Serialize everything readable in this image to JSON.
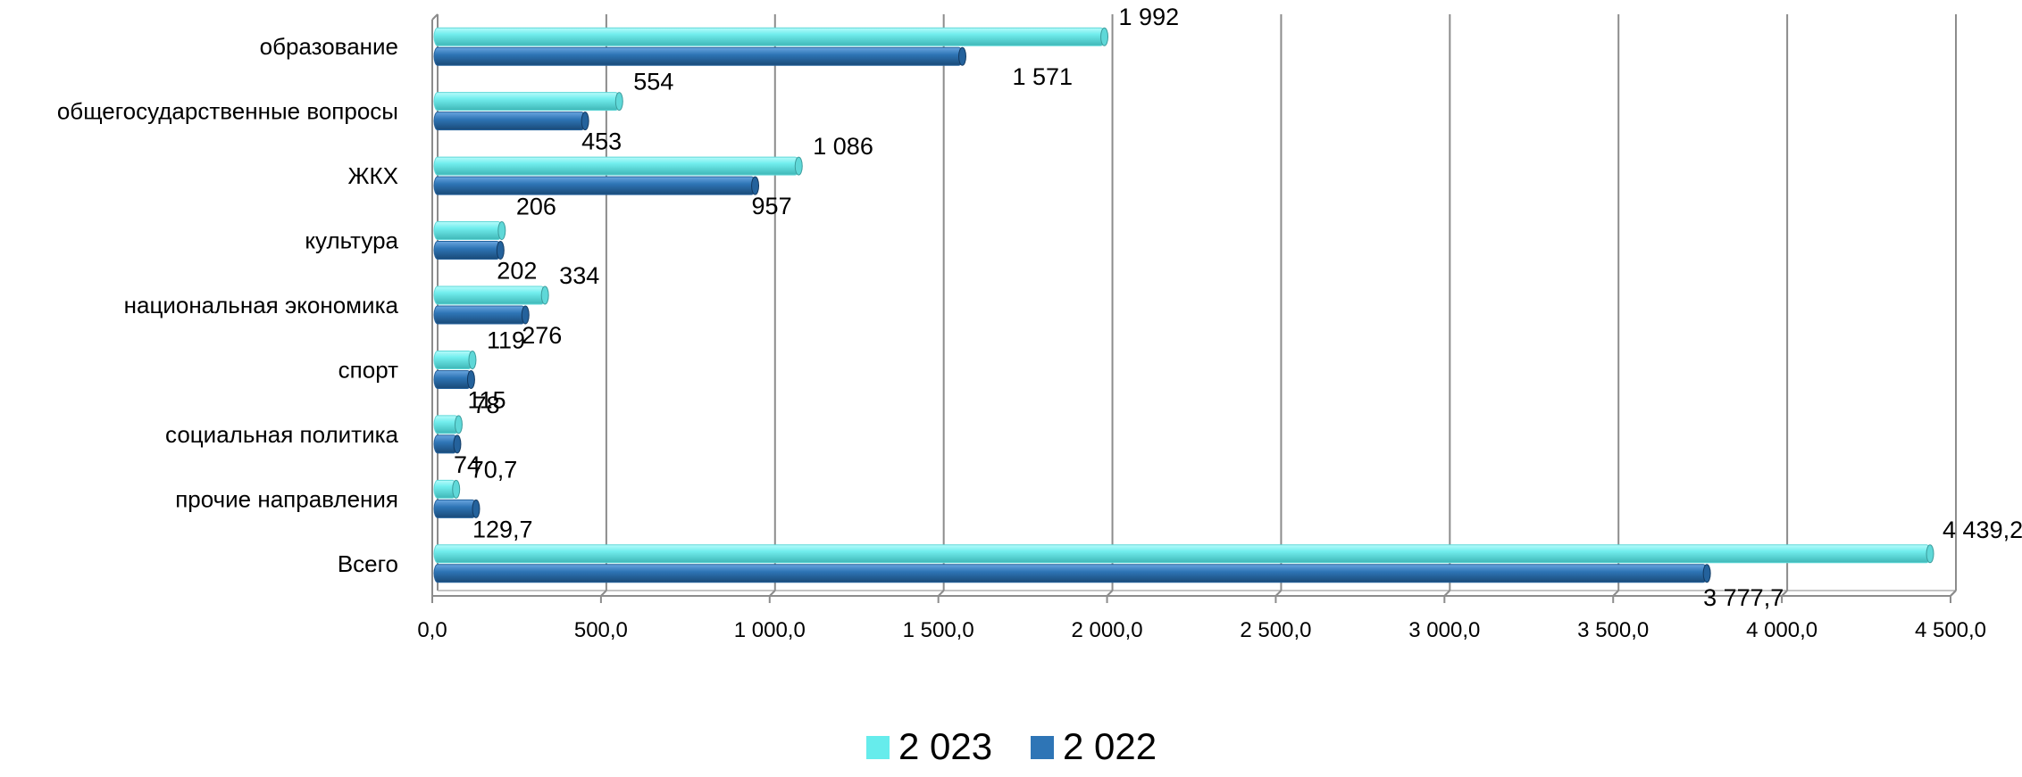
{
  "chart_data": {
    "type": "bar",
    "orientation": "horizontal",
    "style": "3d-cylinder",
    "categories": [
      "образование",
      "общегосударственные вопросы",
      "ЖКХ",
      "культура",
      "национальная экономика",
      "спорт",
      "социальная политика",
      "прочие направления",
      "Всего"
    ],
    "series": [
      {
        "name": "2 023",
        "color": "#66ECEC",
        "values": [
          1992,
          554,
          1086,
          206,
          334,
          119,
          78,
          70.7,
          4439.2
        ],
        "labels": [
          "1 992",
          "554",
          "1 086",
          "206",
          "334",
          "119",
          "78",
          "70,7",
          "4 439,2"
        ]
      },
      {
        "name": "2 022",
        "color": "#2E75B6",
        "values": [
          1571,
          453,
          957,
          202,
          276,
          115,
          74,
          129.7,
          3777.7
        ],
        "labels": [
          "1 571",
          "453",
          "957",
          "202",
          "276",
          "115",
          "74",
          "129,7",
          "3 777,7"
        ]
      }
    ],
    "xlim": [
      0,
      4500
    ],
    "xticks": [
      0,
      500,
      1000,
      1500,
      2000,
      2500,
      3000,
      3500,
      4000,
      4500
    ],
    "xtick_labels": [
      "0,0",
      "500,0",
      "1 000,0",
      "1 500,0",
      "2 000,0",
      "2 500,0",
      "3 000,0",
      "3 500,0",
      "4 000,0",
      "4 500,0"
    ],
    "grid": true,
    "legend_position": "bottom",
    "title": "",
    "xlabel": "",
    "ylabel": ""
  }
}
